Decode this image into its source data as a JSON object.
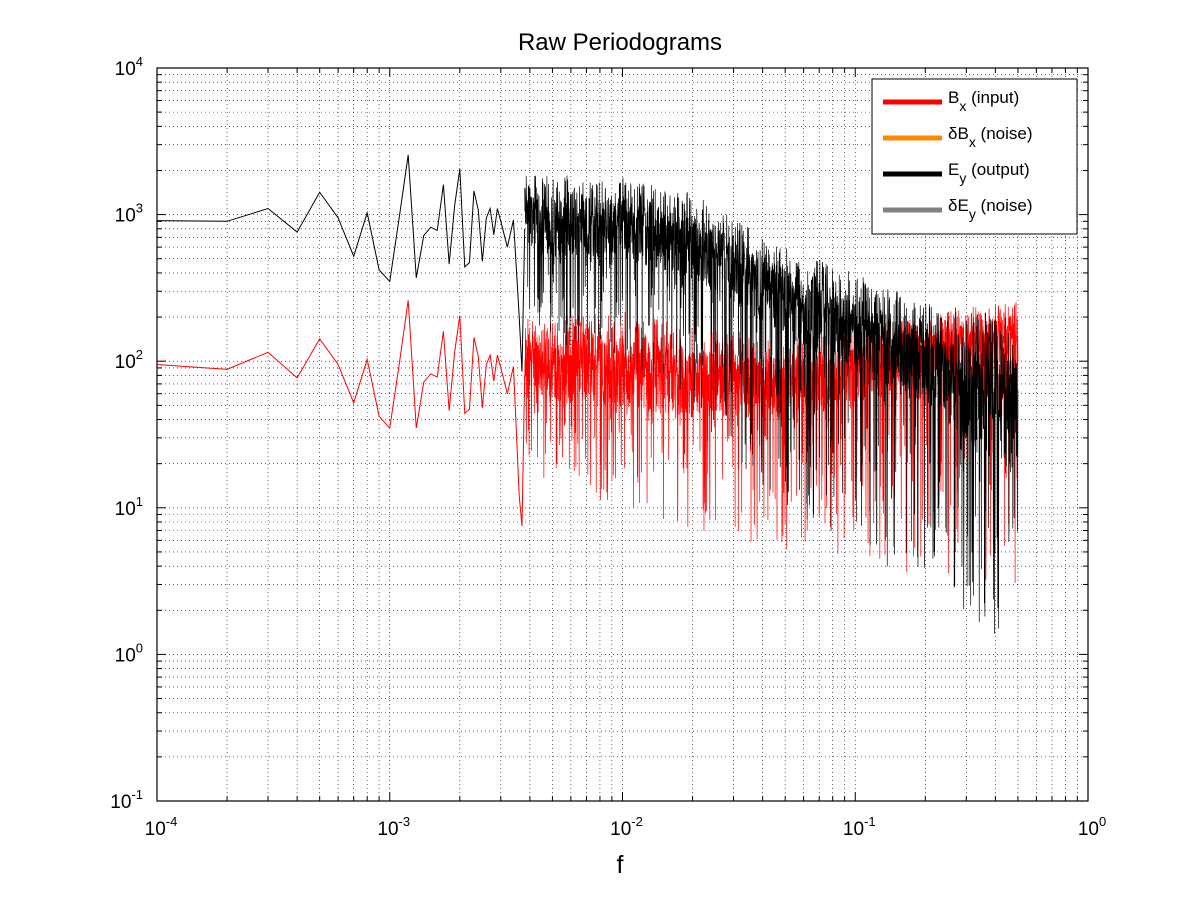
{
  "chart_data": {
    "type": "line",
    "title": "Raw Periodograms",
    "xlabel": "f",
    "ylabel": "",
    "xscale": "log",
    "yscale": "log",
    "xlim": [
      0.0001,
      1
    ],
    "ylim": [
      0.1,
      10000
    ],
    "grid": true,
    "legend_position": "top-right",
    "x_ticks": [
      {
        "base": "10",
        "exp": "-4"
      },
      {
        "base": "10",
        "exp": "-3"
      },
      {
        "base": "10",
        "exp": "-2"
      },
      {
        "base": "10",
        "exp": "-1"
      },
      {
        "base": "10",
        "exp": "0"
      }
    ],
    "y_ticks": [
      {
        "base": "10",
        "exp": "-1"
      },
      {
        "base": "10",
        "exp": "0"
      },
      {
        "base": "10",
        "exp": "1"
      },
      {
        "base": "10",
        "exp": "2"
      },
      {
        "base": "10",
        "exp": "3"
      },
      {
        "base": "10",
        "exp": "4"
      }
    ],
    "legend": [
      {
        "prefix": "",
        "main": "B",
        "sub": "x",
        "suffix": " (input)",
        "color": "#ff0000"
      },
      {
        "prefix": "δ",
        "main": "B",
        "sub": "x",
        "suffix": " (noise)",
        "color": "#ff8800"
      },
      {
        "prefix": "",
        "main": "E",
        "sub": "y",
        "suffix": " (output)",
        "color": "#000000"
      },
      {
        "prefix": "δ",
        "main": "E",
        "sub": "y",
        "suffix": " (noise)",
        "color": "#808080"
      }
    ],
    "series": [
      {
        "id": "Bx",
        "color": "#ff0000",
        "x": [
          0.0001,
          0.0002,
          0.0003,
          0.0004,
          0.0005,
          0.0006,
          0.0007,
          0.0008,
          0.0009,
          0.001,
          0.0011,
          0.0012,
          0.0013,
          0.0014,
          0.0015,
          0.0016,
          0.0017,
          0.0018,
          0.0019,
          0.002,
          0.0021,
          0.0022,
          0.0023,
          0.0024,
          0.0025,
          0.0026,
          0.0027,
          0.0028,
          0.0029,
          0.003,
          0.0032,
          0.0034,
          0.0036,
          0.0037,
          0.0038
        ],
        "values": [
          95,
          88,
          115,
          77,
          142,
          95,
          52,
          103,
          42,
          35,
          97,
          260,
          35,
          72,
          82,
          78,
          160,
          46,
          115,
          205,
          44,
          47,
          145,
          108,
          48,
          95,
          110,
          73,
          110,
          90,
          60,
          92,
          12,
          7.5,
          80
        ]
      },
      {
        "id": "Ey",
        "color": "#000000",
        "x": [
          0.0001,
          0.0002,
          0.0003,
          0.0004,
          0.0005,
          0.0006,
          0.0007,
          0.0008,
          0.0009,
          0.001,
          0.0011,
          0.0012,
          0.0013,
          0.0014,
          0.0015,
          0.0016,
          0.0017,
          0.0018,
          0.0019,
          0.002,
          0.0021,
          0.0022,
          0.0023,
          0.0024,
          0.0025,
          0.0026,
          0.0027,
          0.0028,
          0.0029,
          0.003,
          0.0032,
          0.0034,
          0.0036,
          0.0037,
          0.0038
        ],
        "values": [
          910,
          900,
          1100,
          760,
          1420,
          950,
          520,
          1030,
          420,
          350,
          970,
          2550,
          370,
          720,
          820,
          780,
          1600,
          460,
          1150,
          2050,
          440,
          470,
          1450,
          1080,
          480,
          950,
          1100,
          730,
          1100,
          900,
          600,
          920,
          200,
          85,
          800
        ]
      }
    ],
    "dense_region": {
      "x_range": [
        0.0038,
        0.5
      ],
      "Bx": {
        "center": [
          [
            0.004,
            90
          ],
          [
            0.01,
            85
          ],
          [
            0.02,
            70
          ],
          [
            0.05,
            65
          ],
          [
            0.1,
            80
          ],
          [
            0.2,
            110
          ],
          [
            0.5,
            140
          ]
        ],
        "upper": [
          [
            0.004,
            200
          ],
          [
            0.01,
            220
          ],
          [
            0.02,
            170
          ],
          [
            0.05,
            150
          ],
          [
            0.1,
            180
          ],
          [
            0.2,
            200
          ],
          [
            0.5,
            280
          ]
        ],
        "lower": [
          [
            0.004,
            15
          ],
          [
            0.01,
            10
          ],
          [
            0.02,
            7
          ],
          [
            0.05,
            5
          ],
          [
            0.1,
            4
          ],
          [
            0.2,
            3.5
          ],
          [
            0.5,
            3
          ]
        ]
      },
      "Ey": {
        "center": [
          [
            0.004,
            850
          ],
          [
            0.01,
            800
          ],
          [
            0.02,
            600
          ],
          [
            0.05,
            250
          ],
          [
            0.1,
            150
          ],
          [
            0.2,
            90
          ],
          [
            0.5,
            40
          ]
        ],
        "upper": [
          [
            0.004,
            1900
          ],
          [
            0.01,
            1800
          ],
          [
            0.02,
            1400
          ],
          [
            0.05,
            600
          ],
          [
            0.1,
            400
          ],
          [
            0.2,
            250
          ],
          [
            0.5,
            200
          ]
        ],
        "lower": [
          [
            0.004,
            150
          ],
          [
            0.01,
            100
          ],
          [
            0.02,
            40
          ],
          [
            0.05,
            10
          ],
          [
            0.1,
            5
          ],
          [
            0.2,
            3
          ],
          [
            0.5,
            0.9
          ]
        ]
      }
    }
  }
}
